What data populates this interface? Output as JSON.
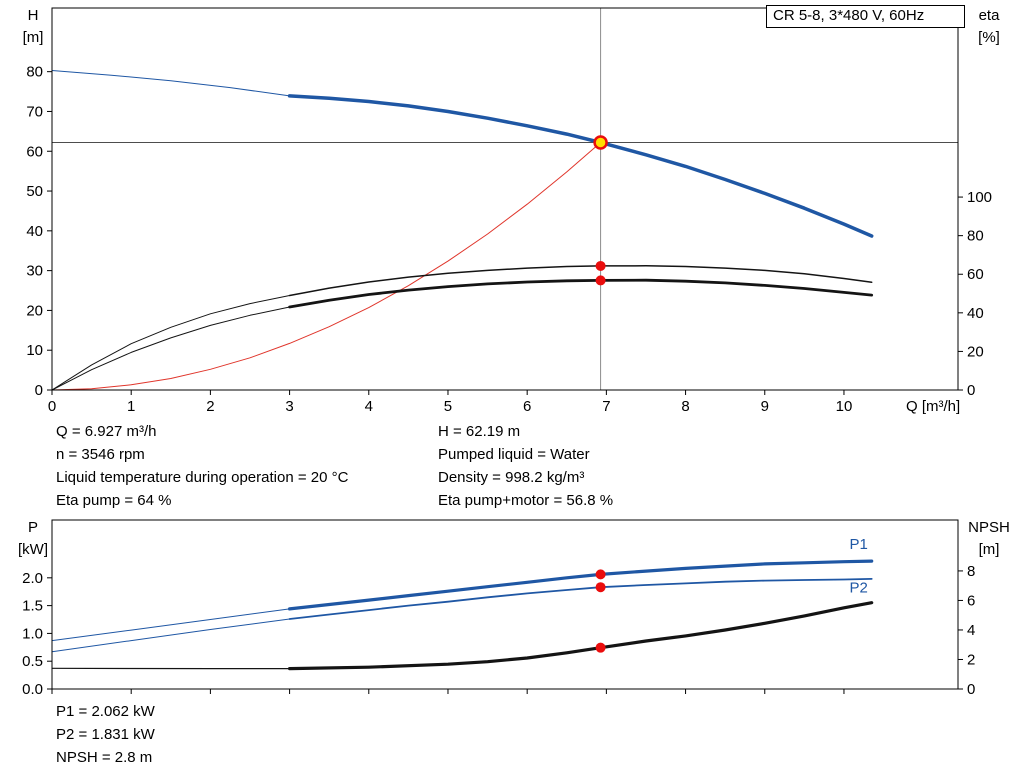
{
  "title_box": {
    "label": "CR 5-8, 3*480 V, 60Hz"
  },
  "info": {
    "top_left": [
      "Q = 6.927 m³/h",
      "n = 3546 rpm",
      "Liquid temperature during operation = 20 °C",
      "Eta pump = 64 %"
    ],
    "top_right": [
      "H = 62.19 m",
      "Pumped liquid = Water",
      "Density = 998.2 kg/m³",
      "Eta pump+motor = 56.8 %"
    ],
    "bottom": [
      "P1 = 2.062 kW",
      "P2 = 1.831 kW",
      "NPSH = 2.8 m"
    ]
  },
  "colors": {
    "curve_blue": "#1f57a4",
    "curve_black": "#141414",
    "curve_red": "#e0352b",
    "dot_red": "#ea0d0d",
    "duty_fill": "#ffdf00",
    "ref_gray": "#8c8c8c",
    "ref_dark": "#4d4d4d"
  },
  "chart_data": [
    {
      "type": "line",
      "name": "head-efficiency-curve",
      "x": {
        "min": 0,
        "max": 11.44,
        "ticks": [
          0,
          1,
          2,
          3,
          4,
          5,
          6,
          7,
          8,
          9,
          10
        ],
        "show_labels": true,
        "label": "Q [m³/h]"
      },
      "y_left": {
        "min": 0,
        "max": 96,
        "ticks": [
          0,
          10,
          20,
          30,
          40,
          50,
          60,
          70,
          80
        ],
        "title": [
          "H",
          "[m]"
        ]
      },
      "y_right": {
        "min": 0,
        "max": 198,
        "ticks": [
          0,
          20,
          40,
          60,
          80,
          100
        ],
        "title": [
          "eta",
          "[%]"
        ]
      },
      "ref_lines": [
        {
          "dir": "v",
          "x": 6.927,
          "color_key": "ref_gray",
          "width": 1
        },
        {
          "dir": "h",
          "y": 62.19,
          "axis": "left",
          "color_key": "ref_dark",
          "width": 1
        }
      ],
      "series": [
        {
          "name": "system-curve",
          "axis": "left",
          "color_key": "curve_red",
          "width": 1,
          "points": [
            [
              0,
              0
            ],
            [
              0.5,
              0.32
            ],
            [
              1,
              1.3
            ],
            [
              1.5,
              2.9
            ],
            [
              2,
              5.2
            ],
            [
              2.5,
              8.1
            ],
            [
              3,
              11.7
            ],
            [
              3.5,
              15.9
            ],
            [
              4,
              20.7
            ],
            [
              4.5,
              26.2
            ],
            [
              5,
              32.4
            ],
            [
              5.5,
              39.2
            ],
            [
              6,
              46.7
            ],
            [
              6.5,
              54.8
            ],
            [
              6.927,
              62.19
            ]
          ]
        },
        {
          "name": "eta-pump-extension",
          "axis": "right",
          "color_key": "curve_black",
          "width": 1,
          "points": [
            [
              0,
              0
            ],
            [
              0.5,
              13
            ],
            [
              1,
              24
            ],
            [
              1.5,
              32.5
            ],
            [
              2,
              39.5
            ],
            [
              2.5,
              44.8
            ],
            [
              3,
              49
            ]
          ]
        },
        {
          "name": "eta-pump",
          "axis": "right",
          "color_key": "curve_black",
          "width": 1.5,
          "points": [
            [
              3,
              49
            ],
            [
              3.5,
              52.8
            ],
            [
              4,
              56
            ],
            [
              4.5,
              58.5
            ],
            [
              5,
              60.5
            ],
            [
              5.5,
              62
            ],
            [
              6,
              63.2
            ],
            [
              6.5,
              64
            ],
            [
              6.927,
              64.3
            ],
            [
              7.5,
              64.4
            ],
            [
              8,
              64
            ],
            [
              8.5,
              63.2
            ],
            [
              9,
              62
            ],
            [
              9.5,
              60.3
            ],
            [
              10,
              57.8
            ],
            [
              10.35,
              55.8
            ]
          ]
        },
        {
          "name": "eta-pump-motor-extension",
          "axis": "right",
          "color_key": "curve_black",
          "width": 1,
          "points": [
            [
              0,
              0
            ],
            [
              0.5,
              10.5
            ],
            [
              1,
              19.5
            ],
            [
              1.5,
              27
            ],
            [
              2,
              33.5
            ],
            [
              2.5,
              38.7
            ],
            [
              3,
              43
            ]
          ]
        },
        {
          "name": "eta-pump-motor",
          "axis": "right",
          "color_key": "curve_black",
          "width": 2.8,
          "points": [
            [
              3,
              43
            ],
            [
              3.5,
              46.5
            ],
            [
              4,
              49.5
            ],
            [
              4.5,
              51.8
            ],
            [
              5,
              53.6
            ],
            [
              5.5,
              55
            ],
            [
              6,
              56
            ],
            [
              6.5,
              56.6
            ],
            [
              6.927,
              56.8
            ],
            [
              7.5,
              56.9
            ],
            [
              8,
              56.4
            ],
            [
              8.5,
              55.5
            ],
            [
              9,
              54.2
            ],
            [
              9.5,
              52.6
            ],
            [
              10,
              50.6
            ],
            [
              10.35,
              49.2
            ]
          ]
        },
        {
          "name": "head-curve-extension",
          "axis": "left",
          "color_key": "curve_blue",
          "width": 1,
          "points": [
            [
              0,
              80.3
            ],
            [
              0.75,
              79.1
            ],
            [
              1.5,
              77.7
            ],
            [
              2.25,
              76
            ],
            [
              3,
              73.9
            ]
          ]
        },
        {
          "name": "head-curve",
          "axis": "left",
          "color_key": "curve_blue",
          "width": 3.5,
          "points": [
            [
              3,
              73.9
            ],
            [
              3.5,
              73.3
            ],
            [
              4,
              72.5
            ],
            [
              4.5,
              71.4
            ],
            [
              5,
              70
            ],
            [
              5.5,
              68.3
            ],
            [
              6,
              66.4
            ],
            [
              6.5,
              64.3
            ],
            [
              6.927,
              62.19
            ],
            [
              7,
              61.8
            ],
            [
              7.5,
              59.1
            ],
            [
              8,
              56.2
            ],
            [
              8.5,
              52.9
            ],
            [
              9,
              49.4
            ],
            [
              9.5,
              45.7
            ],
            [
              10,
              41.7
            ],
            [
              10.35,
              38.7
            ]
          ]
        }
      ],
      "markers": [
        {
          "x": 6.927,
          "y": 64.3,
          "axis": "right",
          "r": 5,
          "fill_key": "dot_red"
        },
        {
          "x": 6.927,
          "y": 56.8,
          "axis": "right",
          "r": 5,
          "fill_key": "dot_red"
        },
        {
          "x": 6.927,
          "y": 62.19,
          "axis": "left",
          "r": 6,
          "fill_key": "duty_fill",
          "stroke_key": "dot_red",
          "stroke_width": 2.5
        }
      ],
      "labels": []
    },
    {
      "type": "line",
      "name": "power-npsh-curve",
      "x": {
        "min": 0,
        "max": 11.44,
        "ticks": [
          0,
          1,
          2,
          3,
          4,
          5,
          6,
          7,
          8,
          9,
          10
        ],
        "show_labels": false,
        "label": ""
      },
      "y_left": {
        "min": 0,
        "max": 3.04,
        "ticks": [
          0,
          0.5,
          1,
          1.5,
          2
        ],
        "tick_labels": [
          "0.0",
          "0.5",
          "1.0",
          "1.5",
          "2.0"
        ],
        "title": [
          "P",
          "[kW]"
        ]
      },
      "y_right": {
        "min": 0,
        "max": 11.45,
        "ticks": [
          0,
          2,
          4,
          6,
          8
        ],
        "title": [
          "NPSH",
          "[m]"
        ]
      },
      "ref_lines": [],
      "series": [
        {
          "name": "npsh-extension",
          "axis": "right",
          "color_key": "curve_black",
          "width": 1.2,
          "points": [
            [
              0,
              1.4
            ],
            [
              1,
              1.39
            ],
            [
              2,
              1.38
            ],
            [
              3,
              1.38
            ]
          ]
        },
        {
          "name": "npsh-curve",
          "axis": "right",
          "color_key": "curve_black",
          "width": 3.2,
          "points": [
            [
              3,
              1.38
            ],
            [
              4,
              1.48
            ],
            [
              5,
              1.68
            ],
            [
              5.5,
              1.85
            ],
            [
              6,
              2.1
            ],
            [
              6.5,
              2.45
            ],
            [
              6.927,
              2.8
            ],
            [
              7.5,
              3.25
            ],
            [
              8,
              3.6
            ],
            [
              8.5,
              4
            ],
            [
              9,
              4.45
            ],
            [
              9.5,
              4.95
            ],
            [
              10,
              5.5
            ],
            [
              10.35,
              5.85
            ]
          ]
        },
        {
          "name": "p2-extension",
          "axis": "left",
          "color_key": "curve_blue",
          "width": 1,
          "points": [
            [
              0,
              0.67
            ],
            [
              1,
              0.87
            ],
            [
              2,
              1.07
            ],
            [
              3,
              1.26
            ]
          ]
        },
        {
          "name": "p2-curve",
          "axis": "left",
          "color_key": "curve_blue",
          "width": 1.8,
          "points": [
            [
              3,
              1.26
            ],
            [
              3.5,
              1.34
            ],
            [
              4,
              1.42
            ],
            [
              4.5,
              1.5
            ],
            [
              5,
              1.57
            ],
            [
              5.5,
              1.65
            ],
            [
              6,
              1.72
            ],
            [
              6.5,
              1.78
            ],
            [
              6.927,
              1.831
            ],
            [
              7.5,
              1.87
            ],
            [
              8,
              1.9
            ],
            [
              8.5,
              1.93
            ],
            [
              9,
              1.95
            ],
            [
              9.5,
              1.96
            ],
            [
              10,
              1.97
            ],
            [
              10.35,
              1.98
            ]
          ]
        },
        {
          "name": "p1-extension",
          "axis": "left",
          "color_key": "curve_blue",
          "width": 1,
          "points": [
            [
              0,
              0.87
            ],
            [
              1,
              1.06
            ],
            [
              2,
              1.25
            ],
            [
              3,
              1.44
            ]
          ]
        },
        {
          "name": "p1-curve",
          "axis": "left",
          "color_key": "curve_blue",
          "width": 3.2,
          "points": [
            [
              3,
              1.44
            ],
            [
              3.5,
              1.52
            ],
            [
              4,
              1.6
            ],
            [
              4.5,
              1.68
            ],
            [
              5,
              1.76
            ],
            [
              5.5,
              1.84
            ],
            [
              6,
              1.92
            ],
            [
              6.5,
              2
            ],
            [
              6.927,
              2.062
            ],
            [
              7.5,
              2.12
            ],
            [
              8,
              2.17
            ],
            [
              8.5,
              2.21
            ],
            [
              9,
              2.25
            ],
            [
              9.5,
              2.27
            ],
            [
              10,
              2.29
            ],
            [
              10.35,
              2.3
            ]
          ]
        }
      ],
      "markers": [
        {
          "x": 6.927,
          "y": 2.062,
          "axis": "left",
          "r": 5,
          "fill_key": "dot_red"
        },
        {
          "x": 6.927,
          "y": 1.831,
          "axis": "left",
          "r": 5,
          "fill_key": "dot_red"
        },
        {
          "x": 6.927,
          "y": 2.8,
          "axis": "right",
          "r": 5,
          "fill_key": "dot_red"
        }
      ],
      "labels": [
        {
          "x": 10.07,
          "y": 2.52,
          "axis": "left",
          "text": "P1",
          "color_key": "curve_blue"
        },
        {
          "x": 10.07,
          "y": 1.74,
          "axis": "left",
          "text": "P2",
          "color_key": "curve_blue"
        }
      ]
    }
  ]
}
